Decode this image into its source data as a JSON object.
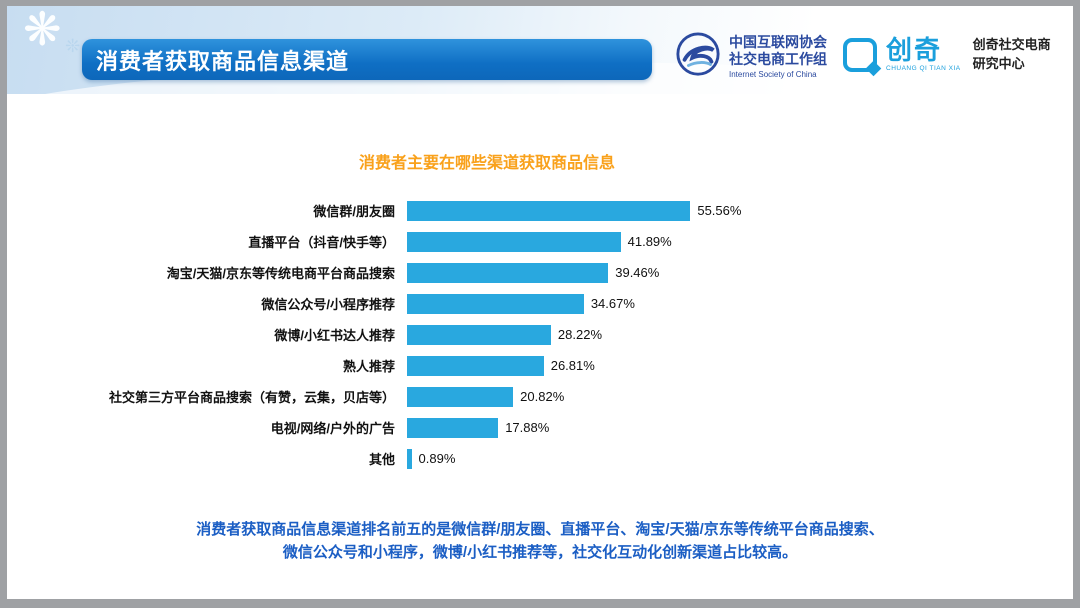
{
  "header": {
    "title": "消费者获取商品信息渠道",
    "logos": {
      "isc": {
        "line1": "中国互联网协会",
        "line2": "社交电商工作组",
        "line3": "Internet Society of China"
      },
      "chuangqi": {
        "name": "创奇",
        "tagline": "CHUANG QI TIAN XIA",
        "right_line1": "创奇社交电商",
        "right_line2": "研究中心"
      }
    }
  },
  "chart_data": {
    "type": "bar",
    "orientation": "horizontal",
    "title": "消费者主要在哪些渠道获取商品信息",
    "categories": [
      "微信群/朋友圈",
      "直播平台（抖音/快手等）",
      "淘宝/天猫/京东等传统电商平台商品搜索",
      "微信公众号/小程序推荐",
      "微博/小红书达人推荐",
      "熟人推荐",
      "社交第三方平台商品搜索（有赞，云集，贝店等）",
      "电视/网络/户外的广告",
      "其他"
    ],
    "values": [
      55.56,
      41.89,
      39.46,
      34.67,
      28.22,
      26.81,
      20.82,
      17.88,
      0.89
    ],
    "value_labels": [
      "55.56%",
      "41.89%",
      "39.46%",
      "34.67%",
      "28.22%",
      "26.81%",
      "20.82%",
      "17.88%",
      "0.89%"
    ],
    "xlim": [
      0,
      60
    ],
    "bar_color": "#29a8df",
    "grid": false,
    "legend": "none",
    "title_color": "#f9a11b"
  },
  "footer": {
    "note_line1": "消费者获取商品信息渠道排名前五的是微信群/朋友圈、直播平台、淘宝/天猫/京东等传统平台商品搜索、",
    "note_line2": "微信公众号和小程序，微博/小红书推荐等，社交化互动化创新渠道占比较高。"
  },
  "colors": {
    "accent_blue": "#0f6fc4",
    "bar_cyan": "#29a8df",
    "chart_title_orange": "#f9a11b",
    "footer_blue": "#1b5ec4",
    "band_blue": "#c7ddf1"
  }
}
